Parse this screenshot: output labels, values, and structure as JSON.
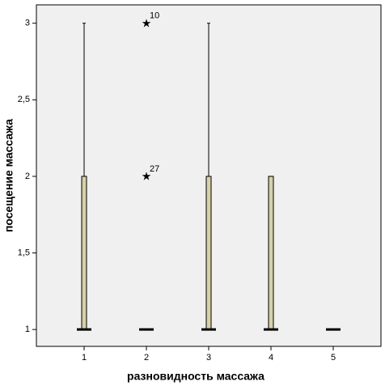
{
  "chart_data": {
    "type": "box",
    "x_label": "разновидность массажа",
    "y_label": "посещение массажа",
    "categories": [
      "1",
      "2",
      "3",
      "4",
      "5"
    ],
    "min": [
      1,
      1,
      1,
      1,
      1
    ],
    "q1": [
      1,
      1,
      1,
      1,
      1
    ],
    "median": [
      1,
      1,
      1,
      1,
      1
    ],
    "q3": [
      2,
      1,
      2,
      2,
      1
    ],
    "max": [
      3,
      1,
      3,
      2,
      1
    ],
    "color": "#d6d1a7",
    "background": "#f0f0f0",
    "outliers": [
      {
        "category": "2",
        "value": 3,
        "case": 10
      },
      {
        "category": "2",
        "value": 2,
        "case": 27
      }
    ],
    "ylim": [
      0.89,
      3.12
    ],
    "yticks": [
      1,
      {
        "value": 1.5,
        "label": "1,5"
      },
      2,
      {
        "value": 2.5,
        "label": "2,5"
      },
      3
    ]
  }
}
